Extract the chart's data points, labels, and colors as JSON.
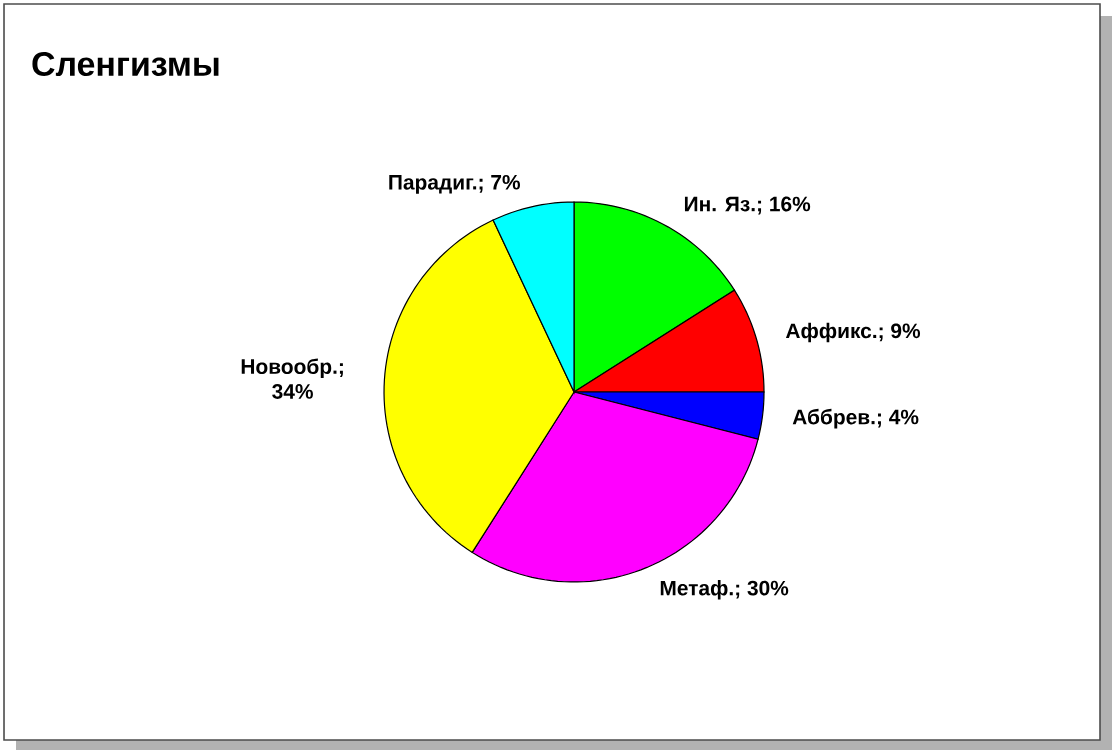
{
  "chart_data": {
    "type": "pie",
    "title": "Сленгизмы",
    "categories": [
      "Ин. Яз.; 16%",
      "Аффикс.; 9%",
      "Аббрев.; 4%",
      "Метаф.; 30%",
      "Новообр.; 34%",
      "Парадиг.; 7%"
    ],
    "values": [
      16,
      9,
      4,
      30,
      34,
      7
    ],
    "colors": [
      "#00ff00",
      "#ff0000",
      "#0000ff",
      "#ff00ff",
      "#ffff00",
      "#00ffff"
    ],
    "legend": false
  }
}
